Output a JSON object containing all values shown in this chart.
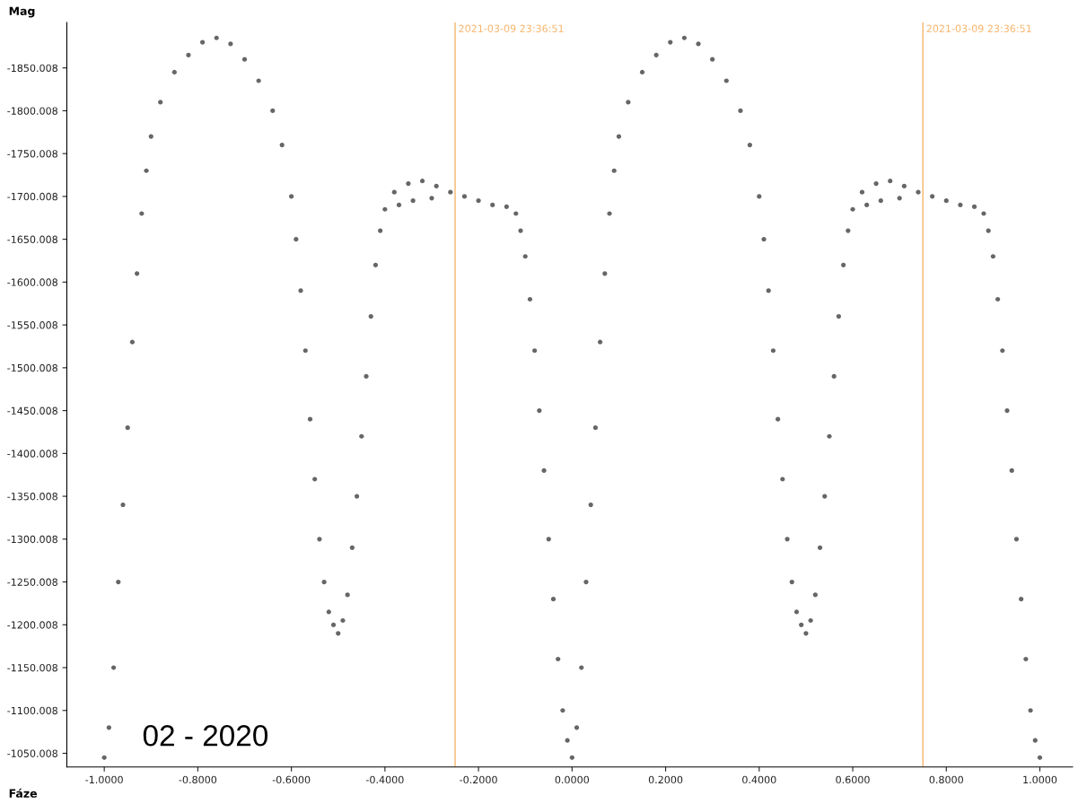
{
  "chart_data": {
    "type": "scatter",
    "xlabel": "Fáze",
    "ylabel": "Mag",
    "annotations": [
      "02 - 2020",
      {
        "text": "2021-03-09 23:36:51",
        "x": -0.25,
        "y": -1895
      },
      {
        "text": "2021-03-09 23:36:51",
        "x": 0.75,
        "y": -1895
      }
    ],
    "xlim": [
      -1.08,
      1.07
    ],
    "ylim": [
      -1034,
      -1903
    ],
    "xticks": [
      {
        "value": -1,
        "label": "-1.0000"
      },
      {
        "value": -0.8,
        "label": "-0.8000"
      },
      {
        "value": -0.6,
        "label": "-0.6000"
      },
      {
        "value": -0.4,
        "label": "-0.4000"
      },
      {
        "value": -0.2,
        "label": "-0.2000"
      },
      {
        "value": 0,
        "label": "0.0000"
      },
      {
        "value": 0.2,
        "label": "0.2000"
      },
      {
        "value": 0.4,
        "label": "0.4000"
      },
      {
        "value": 0.6,
        "label": "0.6000"
      },
      {
        "value": 0.8,
        "label": "0.8000"
      },
      {
        "value": 1,
        "label": "1.0000"
      }
    ],
    "yticks": [
      -1850.008,
      -1800.008,
      -1750.008,
      -1700.008,
      -1650.008,
      -1600.008,
      -1550.008,
      -1500.008,
      -1450.008,
      -1400.008,
      -1350.008,
      -1300.008,
      -1250.008,
      -1200.008,
      -1150.008,
      -1100.008,
      -1050.008
    ],
    "grid": false,
    "marker": "circle",
    "ref_lines": [
      {
        "axis": "x",
        "value": -0.25,
        "color": "#f7b46a"
      },
      {
        "axis": "x",
        "value": 0.75,
        "color": "#f7b46a"
      }
    ],
    "series": [
      {
        "color": "#666666",
        "x": [
          -1.0,
          -0.99,
          -0.98,
          -0.97,
          -0.96,
          -0.95,
          -0.94,
          -0.93,
          -0.92,
          -0.91,
          -0.9,
          -0.88,
          -0.85,
          -0.82,
          -0.79,
          -0.76,
          -0.73,
          -0.7,
          -0.67,
          -0.64,
          -0.62,
          -0.6,
          -0.59,
          -0.58,
          -0.57,
          -0.56,
          -0.55,
          -0.54,
          -0.53,
          -0.52,
          -0.51,
          -0.5,
          -0.49,
          -0.48,
          -0.47,
          -0.46,
          -0.45,
          -0.44,
          -0.43,
          -0.42,
          -0.41,
          -0.4,
          -0.38,
          -0.37,
          -0.35,
          -0.34,
          -0.32,
          -0.3,
          -0.29,
          -0.26,
          -0.23,
          -0.2,
          -0.17,
          -0.14,
          -0.12,
          -0.11,
          -0.1,
          -0.09,
          -0.08,
          -0.07,
          -0.06,
          -0.05,
          -0.04,
          -0.03,
          -0.02,
          -0.01,
          0.0,
          0.01,
          0.02,
          0.03,
          0.04,
          0.05,
          0.06,
          0.07,
          0.08,
          0.09,
          0.1,
          0.12,
          0.15,
          0.18,
          0.21,
          0.24,
          0.27,
          0.3,
          0.33,
          0.36,
          0.38,
          0.4,
          0.41,
          0.42,
          0.43,
          0.44,
          0.45,
          0.46,
          0.47,
          0.48,
          0.49,
          0.5,
          0.51,
          0.52,
          0.53,
          0.54,
          0.55,
          0.56,
          0.57,
          0.58,
          0.59,
          0.6,
          0.62,
          0.63,
          0.65,
          0.66,
          0.68,
          0.7,
          0.71,
          0.74,
          0.77,
          0.8,
          0.83,
          0.86,
          0.88,
          0.89,
          0.9,
          0.91,
          0.92,
          0.93,
          0.94,
          0.95,
          0.96,
          0.97,
          0.98,
          0.99,
          1.0
        ],
        "values": [
          -1045,
          -1080,
          -1150,
          -1250,
          -1340,
          -1430,
          -1530,
          -1610,
          -1680,
          -1730,
          -1770,
          -1810,
          -1845,
          -1865,
          -1880,
          -1885,
          -1878,
          -1860,
          -1835,
          -1800,
          -1760,
          -1700,
          -1650,
          -1590,
          -1520,
          -1440,
          -1370,
          -1300,
          -1250,
          -1215,
          -1200,
          -1190,
          -1205,
          -1235,
          -1290,
          -1350,
          -1420,
          -1490,
          -1560,
          -1620,
          -1660,
          -1685,
          -1705,
          -1690,
          -1715,
          -1695,
          -1718,
          -1698,
          -1712,
          -1705,
          -1700,
          -1695,
          -1690,
          -1688,
          -1680,
          -1660,
          -1630,
          -1580,
          -1520,
          -1450,
          -1380,
          -1300,
          -1230,
          -1160,
          -1100,
          -1065,
          -1045,
          -1080,
          -1150,
          -1250,
          -1340,
          -1430,
          -1530,
          -1610,
          -1680,
          -1730,
          -1770,
          -1810,
          -1845,
          -1865,
          -1880,
          -1885,
          -1878,
          -1860,
          -1835,
          -1800,
          -1760,
          -1700,
          -1650,
          -1590,
          -1520,
          -1440,
          -1370,
          -1300,
          -1250,
          -1215,
          -1200,
          -1190,
          -1205,
          -1235,
          -1290,
          -1350,
          -1420,
          -1490,
          -1560,
          -1620,
          -1660,
          -1685,
          -1705,
          -1690,
          -1715,
          -1695,
          -1718,
          -1698,
          -1712,
          -1705,
          -1700,
          -1695,
          -1690,
          -1688,
          -1680,
          -1660,
          -1630,
          -1580,
          -1520,
          -1450,
          -1380,
          -1300,
          -1230,
          -1160,
          -1100,
          -1065,
          -1045
        ]
      }
    ]
  }
}
